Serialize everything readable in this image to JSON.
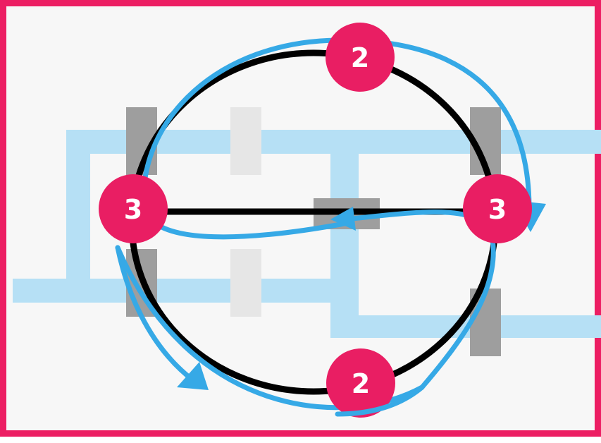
{
  "colors": {
    "border": "#ec1e63",
    "background": "#f7f7f7",
    "node_fill": "#e91e63",
    "node_text": "#ffffff",
    "graph_edge": "#000000",
    "route_arrow": "#36a9e6",
    "map_path": "#b6e0f5",
    "bridge_dark": "#9e9e9e",
    "bridge_light": "#e6e6e6"
  },
  "nodes": {
    "top": {
      "degree": "2"
    },
    "left": {
      "degree": "3"
    },
    "right": {
      "degree": "3"
    },
    "bottom": {
      "degree": "2"
    }
  }
}
